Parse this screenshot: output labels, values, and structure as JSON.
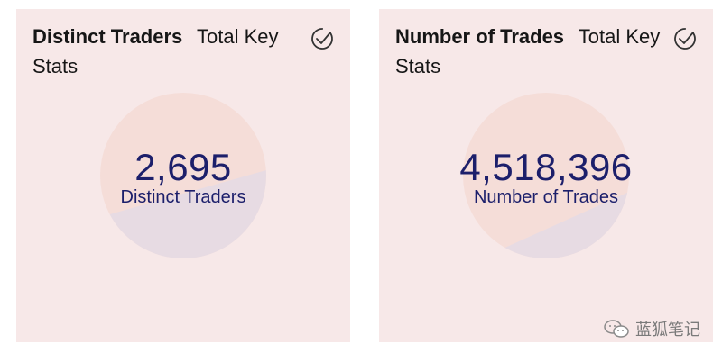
{
  "cards": [
    {
      "title": "Distinct Traders",
      "subtitle": "Total Key Stats",
      "value": "2,695",
      "label": "Distinct Traders",
      "icon": "check-circle-icon"
    },
    {
      "title": "Number of Trades",
      "subtitle": "Total Key Stats",
      "value": "4,518,396",
      "label": "Number of Trades",
      "icon": "check-circle-icon"
    }
  ],
  "watermark": {
    "text": "蓝狐笔记",
    "icon": "wechat-icon"
  },
  "colors": {
    "card_background": "#f7e8e8",
    "pie_top": "#f5ddd8",
    "pie_bottom": "#e7dbe3",
    "metric_text": "#1c1f6b"
  }
}
